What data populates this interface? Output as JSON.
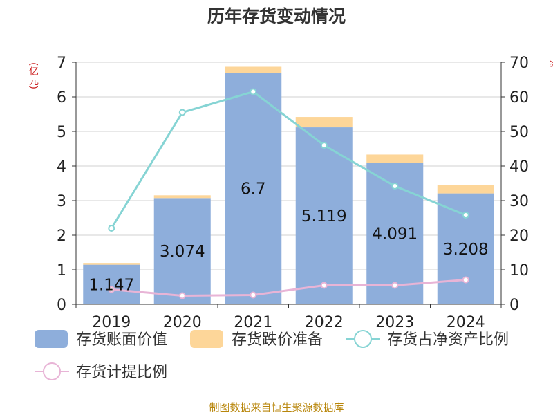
{
  "title": "历年存货变动情况",
  "source_note": "制图数据来自恒生聚源数据库",
  "left_unit": "(亿元)",
  "right_unit": "%",
  "chart_data": {
    "type": "bar",
    "categories": [
      "2019",
      "2020",
      "2021",
      "2022",
      "2023",
      "2024"
    ],
    "left_axis": {
      "ylim": [
        0,
        7
      ],
      "ticks": [
        "0",
        "1",
        "2",
        "3",
        "4",
        "5",
        "6",
        "7"
      ]
    },
    "right_axis": {
      "ylim": [
        0,
        70
      ],
      "ticks": [
        "0",
        "10",
        "20",
        "30",
        "40",
        "50",
        "60",
        "70"
      ]
    },
    "series": [
      {
        "name": "存货账面价值",
        "kind": "bar",
        "axis": "left",
        "color": "#8eaedb",
        "values": [
          1.147,
          3.074,
          6.7,
          5.119,
          4.091,
          3.208
        ],
        "labels": [
          "1.147",
          "3.074",
          "6.7",
          "5.119",
          "4.091",
          "3.208"
        ]
      },
      {
        "name": "存货跌价准备",
        "kind": "bar",
        "axis": "left",
        "color": "#fdd699",
        "values": [
          0.05,
          0.08,
          0.17,
          0.3,
          0.24,
          0.25
        ]
      },
      {
        "name": "存货占净资产比例",
        "kind": "line",
        "axis": "right",
        "color": "#86d4d4",
        "values": [
          22,
          55.5,
          61.5,
          46,
          34.2,
          25.8
        ]
      },
      {
        "name": "存货计提比例",
        "kind": "line",
        "axis": "right",
        "color": "#e8b4d6",
        "values": [
          4.3,
          2.5,
          2.7,
          5.5,
          5.5,
          7.1
        ]
      }
    ],
    "grid": true,
    "legend_position": "bottom"
  }
}
